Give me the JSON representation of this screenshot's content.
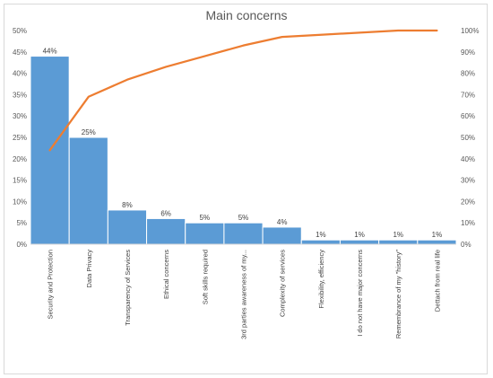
{
  "chart_data": {
    "type": "bar",
    "title": "Main concerns",
    "categories": [
      "Security and Protection",
      "Data Privacy",
      "Transparency of Services",
      "Ethical concerns",
      "Soft skills required",
      "3rd parties awareness of my...",
      "Complexity of services",
      "Flexibility, efficiency",
      "I do not have major concerns",
      "Remembrance of my \"history\"",
      "Dettach from real life"
    ],
    "series": [
      {
        "type": "bar",
        "values": [
          44,
          25,
          8,
          6,
          5,
          5,
          4,
          1,
          1,
          1,
          1
        ],
        "color": "#5b9bd5"
      },
      {
        "type": "line",
        "axis": "secondary",
        "values": [
          44,
          69,
          77,
          83,
          88,
          93,
          97,
          98,
          99,
          100,
          100
        ],
        "color": "#ed7d31"
      }
    ],
    "data_labels": [
      "44%",
      "25%",
      "8%",
      "6%",
      "5%",
      "5%",
      "4%",
      "1%",
      "1%",
      "1%",
      "1%"
    ],
    "y_ticks": [
      "0%",
      "5%",
      "10%",
      "15%",
      "20%",
      "25%",
      "30%",
      "35%",
      "40%",
      "45%",
      "50%"
    ],
    "y2_ticks": [
      "0%",
      "10%",
      "20%",
      "30%",
      "40%",
      "50%",
      "60%",
      "70%",
      "80%",
      "90%",
      "100%"
    ],
    "ylim": [
      0,
      50
    ],
    "y2lim": [
      0,
      100
    ],
    "grid": false,
    "legend": "none"
  }
}
